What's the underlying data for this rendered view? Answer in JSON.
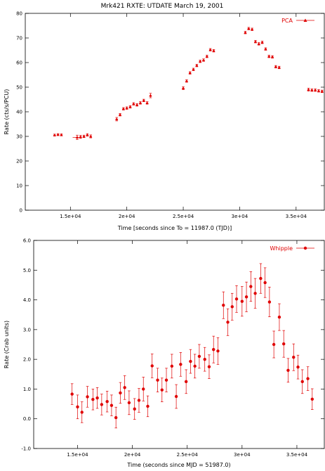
{
  "title": "Mrk421 RXTE: UTDATE March 19, 2001",
  "colors": {
    "data": "#e00000",
    "frame": "#000000"
  },
  "chart_data": [
    {
      "type": "scatter",
      "marker": "triangle",
      "xlabel": "Time [seconds since To = 11987.0 (TJD)]",
      "ylabel": "Rate (cts/s/PCU)",
      "xlim": [
        11000,
        37500
      ],
      "ylim": [
        0,
        80
      ],
      "xticks": [
        15000,
        20000,
        25000,
        30000,
        35000
      ],
      "xtick_labels": [
        "1.5e+04",
        "2e+04",
        "2.5e+04",
        "3e+04",
        "3.5e+04"
      ],
      "yticks": [
        0,
        10,
        20,
        30,
        40,
        50,
        60,
        70,
        80
      ],
      "ytick_labels": [
        "0",
        "10",
        "20",
        "30",
        "40",
        "50",
        "60",
        "70",
        "80"
      ],
      "legend": {
        "label": "PCA",
        "position": "top-right"
      },
      "series": [
        {
          "name": "PCA",
          "x": [
            13600,
            13900,
            14200,
            15600,
            15900,
            16200,
            16500,
            16800,
            19100,
            19400,
            19700,
            20000,
            20300,
            20600,
            20900,
            21200,
            21500,
            21800,
            22100,
            25000,
            25300,
            25600,
            25900,
            26200,
            26500,
            26800,
            27100,
            27400,
            27700,
            30500,
            30800,
            31100,
            31400,
            31700,
            32000,
            32300,
            32600,
            32900,
            33200,
            33500,
            36100,
            36400,
            36700,
            37000,
            37300
          ],
          "y": [
            30.5,
            30.7,
            30.6,
            29.6,
            29.8,
            30.0,
            30.6,
            30.0,
            37.0,
            38.8,
            41.2,
            41.5,
            42.0,
            43.2,
            42.8,
            43.6,
            44.6,
            43.6,
            46.6,
            49.6,
            52.5,
            55.8,
            57.2,
            58.8,
            60.5,
            61.0,
            62.5,
            65.2,
            64.8,
            72.2,
            73.8,
            73.5,
            68.5,
            67.6,
            68.2,
            65.5,
            62.5,
            62.3,
            58.3,
            58.0,
            49.0,
            48.8,
            48.8,
            48.5,
            48.3
          ],
          "yerr": [
            0.4,
            0.4,
            0.4,
            0.9,
            0.6,
            0.5,
            0.5,
            0.6,
            0.7,
            0.5,
            0.5,
            0.5,
            0.5,
            0.5,
            0.5,
            0.5,
            0.5,
            0.5,
            0.9,
            0.6,
            0.5,
            0.5,
            0.5,
            0.5,
            0.5,
            0.5,
            0.5,
            0.5,
            0.5,
            0.5,
            0.5,
            0.5,
            0.5,
            0.5,
            0.5,
            0.5,
            0.5,
            0.5,
            0.5,
            0.5,
            0.6,
            0.5,
            0.5,
            0.5,
            0.5
          ],
          "xerr": [
            100,
            100,
            100,
            400,
            100,
            100,
            100,
            100,
            100,
            100,
            100,
            100,
            100,
            100,
            100,
            100,
            100,
            100,
            100,
            100,
            100,
            100,
            100,
            100,
            100,
            100,
            100,
            100,
            100,
            100,
            100,
            100,
            100,
            100,
            100,
            100,
            100,
            100,
            100,
            100,
            100,
            100,
            100,
            100,
            100
          ]
        }
      ]
    },
    {
      "type": "scatter",
      "marker": "circle",
      "xlabel": "Time (seconds since MJD = 51987.0)",
      "ylabel": "Rate (Crab units)",
      "xlim": [
        11000,
        37500
      ],
      "ylim": [
        -1.0,
        6.0
      ],
      "xticks": [
        15000,
        20000,
        25000,
        30000,
        35000
      ],
      "xtick_labels": [
        "1.5e+04",
        "2e+04",
        "2.5e+04",
        "3e+04",
        "3.5e+04"
      ],
      "yticks": [
        -1.0,
        0.0,
        1.0,
        2.0,
        3.0,
        4.0,
        5.0,
        6.0
      ],
      "ytick_labels": [
        "-1.0",
        "0.0",
        "1.0",
        "2.0",
        "3.0",
        "4.0",
        "5.0",
        "6.0"
      ],
      "legend": {
        "label": "Whipple",
        "position": "top-right"
      },
      "series": [
        {
          "name": "Whipple",
          "x": [
            14500,
            15000,
            15400,
            15900,
            16400,
            16800,
            17200,
            17700,
            18100,
            18500,
            18900,
            19300,
            19700,
            20200,
            20600,
            21000,
            21400,
            21800,
            22300,
            22700,
            23100,
            23600,
            24000,
            24400,
            24900,
            25300,
            25700,
            26100,
            26600,
            27000,
            27400,
            27800,
            28300,
            28700,
            29100,
            29500,
            30000,
            30400,
            30800,
            31200,
            31700,
            32100,
            32500,
            32900,
            33400,
            33800,
            34200,
            34700,
            35100,
            35500,
            36000,
            36400
          ],
          "y": [
            0.83,
            0.4,
            0.22,
            0.74,
            0.65,
            0.7,
            0.48,
            0.58,
            0.45,
            0.04,
            0.87,
            1.05,
            0.54,
            0.33,
            0.62,
            1.0,
            0.42,
            1.78,
            1.3,
            0.97,
            1.3,
            1.77,
            0.75,
            1.83,
            1.25,
            1.93,
            1.77,
            2.1,
            2.0,
            1.75,
            2.33,
            2.28,
            3.82,
            3.25,
            3.77,
            4.03,
            3.95,
            4.1,
            4.45,
            4.22,
            4.72,
            4.58,
            3.93,
            2.5,
            3.42,
            2.52,
            1.63,
            2.07,
            1.74,
            1.25,
            1.35,
            0.66
          ],
          "yerr": [
            0.35,
            0.4,
            0.35,
            0.35,
            0.35,
            0.35,
            0.35,
            0.35,
            0.35,
            0.35,
            0.35,
            0.4,
            0.4,
            0.35,
            0.4,
            0.4,
            0.35,
            0.4,
            0.4,
            0.4,
            0.4,
            0.4,
            0.4,
            0.4,
            0.4,
            0.4,
            0.4,
            0.4,
            0.4,
            0.4,
            0.45,
            0.45,
            0.45,
            0.45,
            0.45,
            0.45,
            0.5,
            0.5,
            0.5,
            0.5,
            0.5,
            0.5,
            0.5,
            0.45,
            0.45,
            0.45,
            0.4,
            0.45,
            0.4,
            0.4,
            0.4,
            0.35
          ]
        }
      ]
    }
  ]
}
